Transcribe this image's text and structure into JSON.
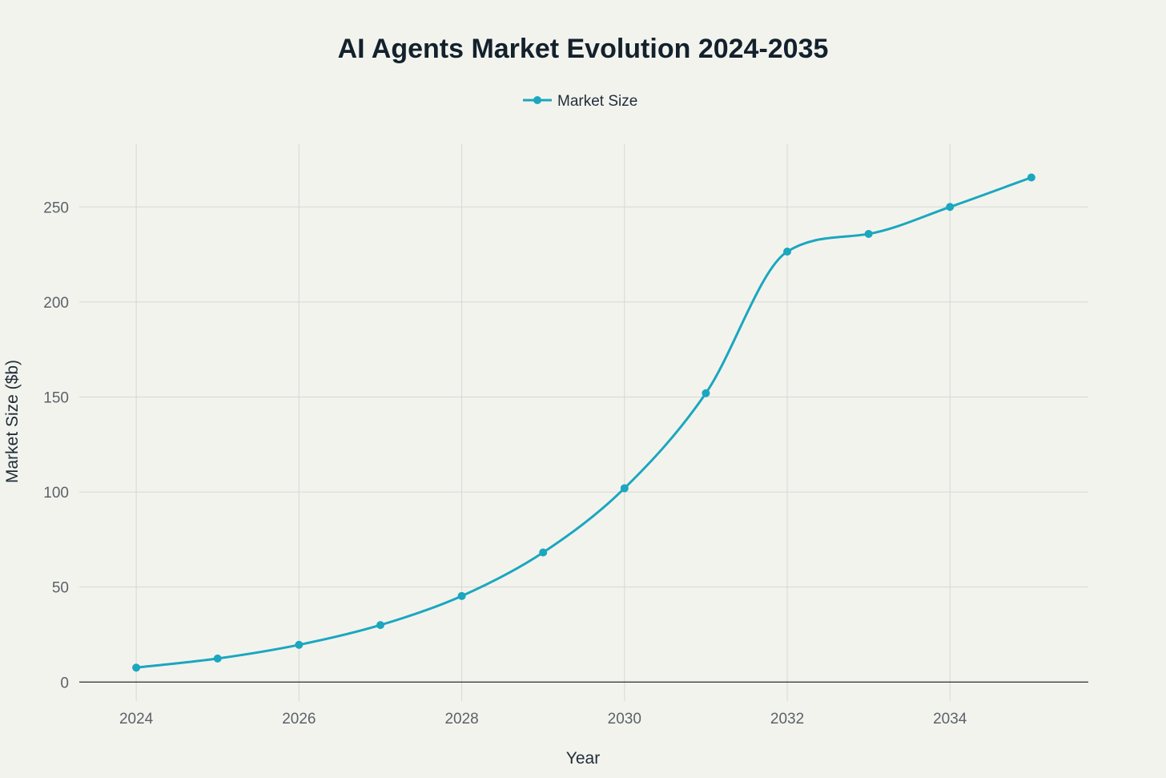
{
  "chart_data": {
    "type": "line",
    "title": "AI Agents Market Evolution 2024-2035",
    "xlabel": "Year",
    "ylabel": "Market Size ($b)",
    "legend_position": "top-center",
    "grid": true,
    "xlim": [
      2023.3,
      2035.7
    ],
    "ylim": [
      -10,
      283
    ],
    "x_ticks": [
      2024,
      2026,
      2028,
      2030,
      2032,
      2034
    ],
    "y_ticks": [
      0,
      50,
      100,
      150,
      200,
      250
    ],
    "series": [
      {
        "name": "Market Size",
        "color": "#1aa7bf",
        "x": [
          2024,
          2025,
          2026,
          2027,
          2028,
          2029,
          2030,
          2031,
          2032,
          2033,
          2034,
          2035
        ],
        "values": [
          7.6,
          12.4,
          19.6,
          30.0,
          45.3,
          68.2,
          102.0,
          152.0,
          226.5,
          235.8,
          250.0,
          265.5
        ]
      }
    ]
  }
}
